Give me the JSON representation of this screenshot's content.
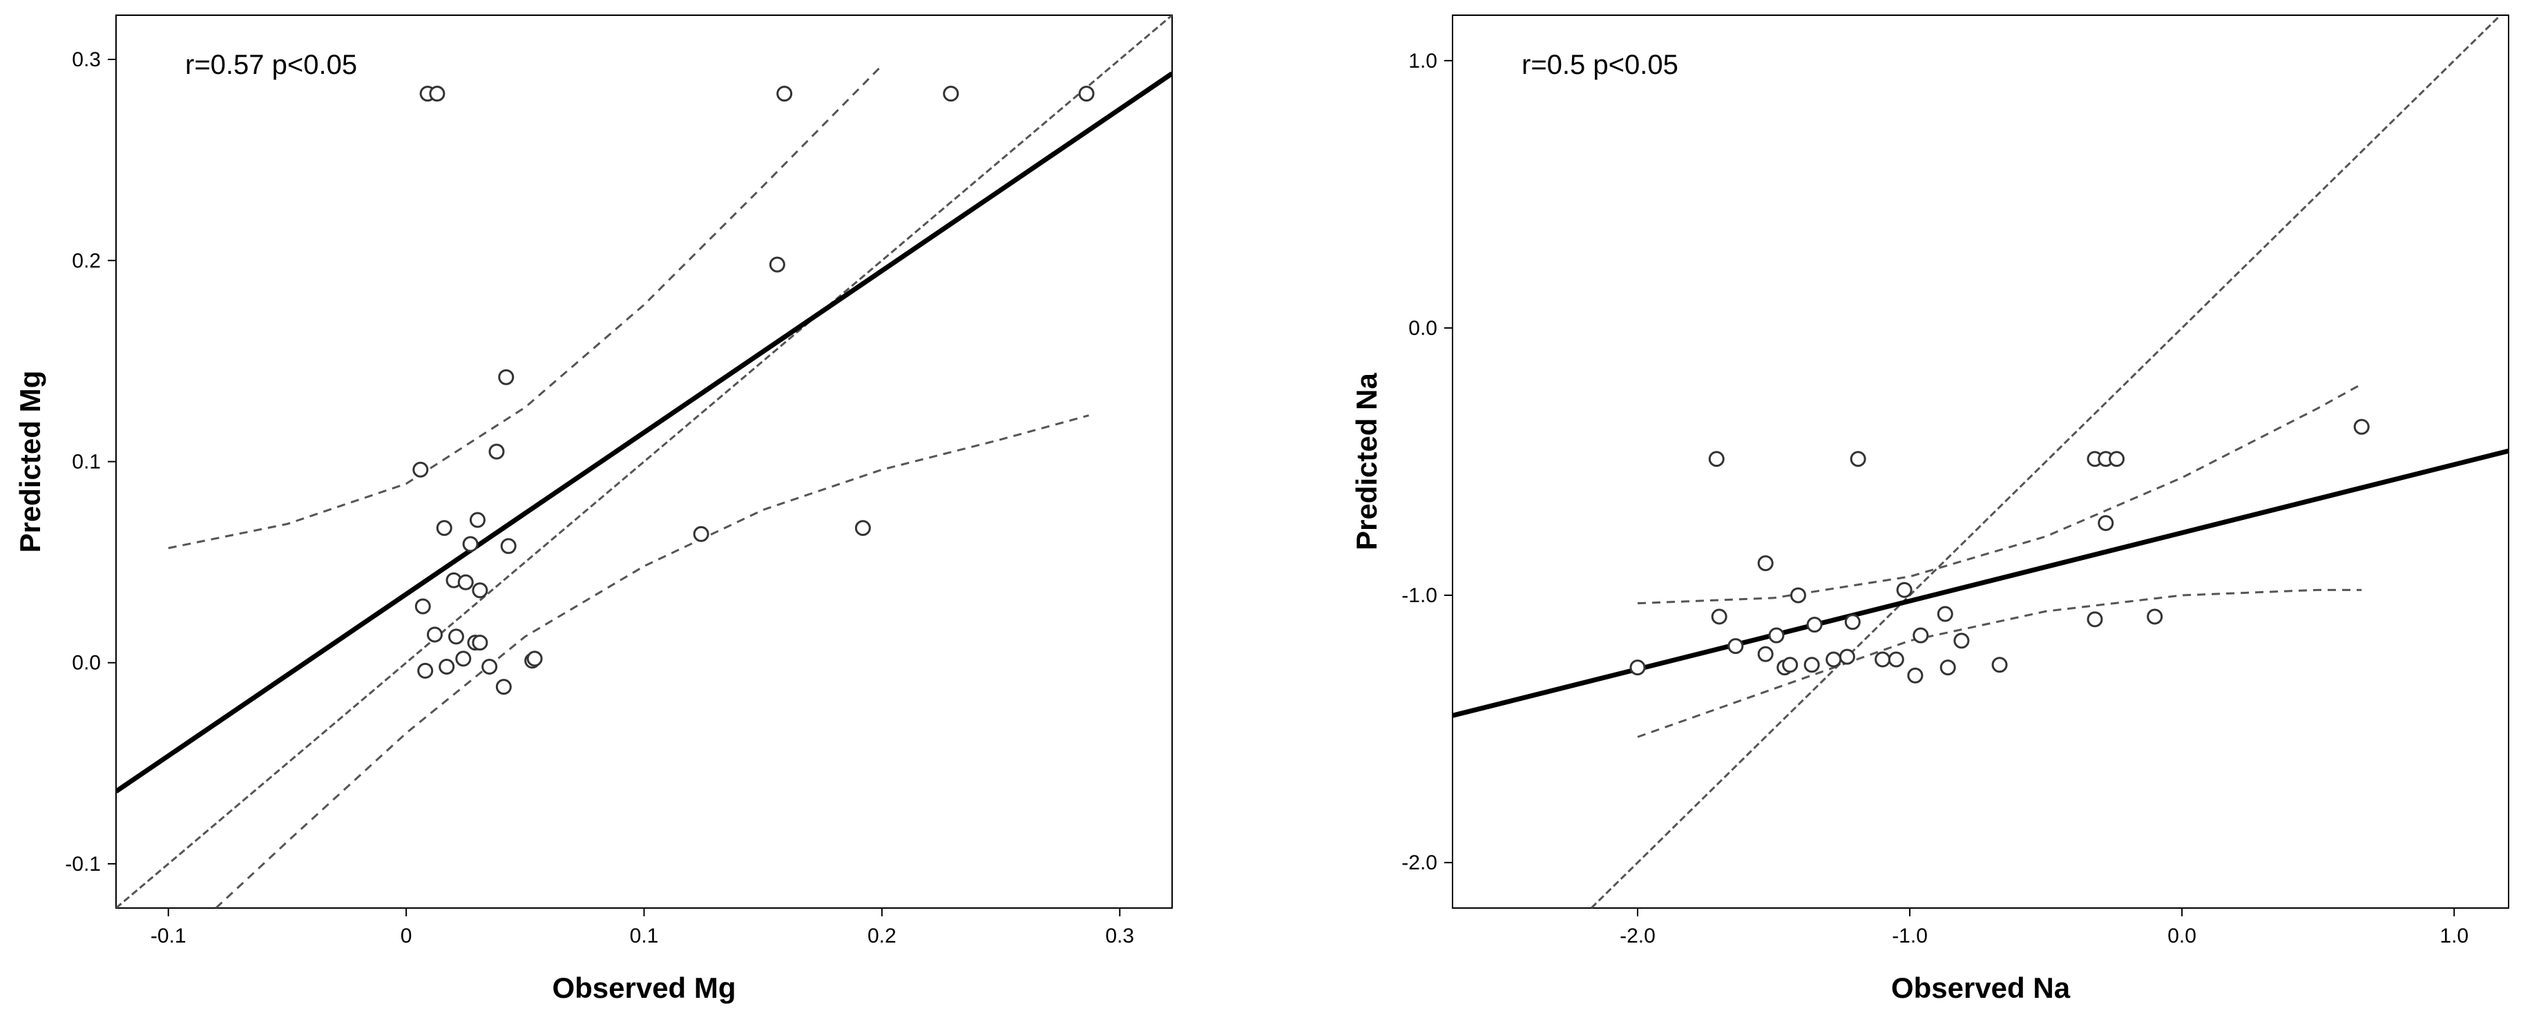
{
  "chart_data": [
    {
      "type": "scatter",
      "title": "",
      "xlabel": "Observed Mg",
      "ylabel": "Predicted Mg",
      "annotation": "r=0.57 p<0.05",
      "xlim": [
        -0.122,
        0.322
      ],
      "ylim": [
        -0.122,
        0.322
      ],
      "x_ticks": [
        -0.1,
        0,
        0.1,
        0.2,
        0.3
      ],
      "x_tick_labels": [
        "-0.1",
        "0",
        "0.1",
        "0.2",
        "0.3"
      ],
      "y_ticks": [
        -0.1,
        0.0,
        0.1,
        0.2,
        0.3
      ],
      "y_tick_labels": [
        "-0.1",
        "0.0",
        "0.1",
        "0.2",
        "0.3"
      ],
      "grid": false,
      "legend": "none",
      "colors": {
        "fit": "#000000",
        "ci": "#555555",
        "identity": "#555555",
        "points": "#333333"
      },
      "points": [
        {
          "x": 0.009,
          "y": 0.283
        },
        {
          "x": 0.013,
          "y": 0.283
        },
        {
          "x": 0.159,
          "y": 0.283
        },
        {
          "x": 0.229,
          "y": 0.283
        },
        {
          "x": 0.286,
          "y": 0.283
        },
        {
          "x": 0.156,
          "y": 0.198
        },
        {
          "x": 0.042,
          "y": 0.142
        },
        {
          "x": 0.038,
          "y": 0.105
        },
        {
          "x": 0.006,
          "y": 0.096
        },
        {
          "x": 0.03,
          "y": 0.071
        },
        {
          "x": 0.016,
          "y": 0.067
        },
        {
          "x": 0.192,
          "y": 0.067
        },
        {
          "x": 0.124,
          "y": 0.064
        },
        {
          "x": 0.043,
          "y": 0.058
        },
        {
          "x": 0.027,
          "y": 0.059
        },
        {
          "x": 0.02,
          "y": 0.041
        },
        {
          "x": 0.025,
          "y": 0.04
        },
        {
          "x": 0.031,
          "y": 0.036
        },
        {
          "x": 0.007,
          "y": 0.028
        },
        {
          "x": 0.012,
          "y": 0.014
        },
        {
          "x": 0.021,
          "y": 0.013
        },
        {
          "x": 0.029,
          "y": 0.01
        },
        {
          "x": 0.031,
          "y": 0.01
        },
        {
          "x": 0.024,
          "y": 0.002
        },
        {
          "x": 0.053,
          "y": 0.001
        },
        {
          "x": 0.054,
          "y": 0.002
        },
        {
          "x": 0.008,
          "y": -0.004
        },
        {
          "x": 0.017,
          "y": -0.002
        },
        {
          "x": 0.035,
          "y": -0.002
        },
        {
          "x": 0.041,
          "y": -0.012
        }
      ],
      "fit_line": {
        "x": [
          -0.122,
          0.322
        ],
        "y": [
          -0.064,
          0.293
        ]
      },
      "identity_line": {
        "x": [
          -0.122,
          0.322
        ],
        "y": [
          -0.122,
          0.322
        ]
      },
      "ci_upper": {
        "x": [
          -0.1,
          -0.05,
          0.0,
          0.05,
          0.1,
          0.15,
          0.2
        ],
        "y": [
          0.057,
          0.069,
          0.089,
          0.127,
          0.178,
          0.237,
          0.297
        ]
      },
      "ci_lower": {
        "x": [
          -0.08,
          -0.05,
          0.0,
          0.05,
          0.1,
          0.15,
          0.2,
          0.25,
          0.287
        ],
        "y": [
          -0.122,
          -0.089,
          -0.035,
          0.013,
          0.048,
          0.076,
          0.096,
          0.111,
          0.123
        ]
      }
    },
    {
      "type": "scatter",
      "title": "",
      "xlabel": "Observed Na",
      "ylabel": "Predicted Na",
      "annotation": "r=0.5 p<0.05",
      "xlim": [
        -2.68,
        1.2
      ],
      "ylim": [
        -2.17,
        1.17
      ],
      "x_ticks": [
        -2.0,
        -1.0,
        0.0,
        1.0
      ],
      "x_tick_labels": [
        "-2.0",
        "-1.0",
        "0.0",
        "1.0"
      ],
      "y_ticks": [
        -2.0,
        -1.0,
        0.0,
        1.0
      ],
      "y_tick_labels": [
        "-2.0",
        "-1.0",
        "0.0",
        "1.0"
      ],
      "grid": false,
      "legend": "none",
      "colors": {
        "fit": "#000000",
        "ci": "#555555",
        "identity": "#555555",
        "points": "#333333"
      },
      "points": [
        {
          "x": -2.0,
          "y": -1.27
        },
        {
          "x": -1.71,
          "y": -0.49
        },
        {
          "x": -1.7,
          "y": -1.08
        },
        {
          "x": -1.64,
          "y": -1.19
        },
        {
          "x": -1.53,
          "y": -0.88
        },
        {
          "x": -1.53,
          "y": -1.22
        },
        {
          "x": -1.49,
          "y": -1.15
        },
        {
          "x": -1.46,
          "y": -1.27
        },
        {
          "x": -1.44,
          "y": -1.26
        },
        {
          "x": -1.41,
          "y": -1.0
        },
        {
          "x": -1.36,
          "y": -1.26
        },
        {
          "x": -1.35,
          "y": -1.11
        },
        {
          "x": -1.28,
          "y": -1.24
        },
        {
          "x": -1.23,
          "y": -1.23
        },
        {
          "x": -1.21,
          "y": -1.1
        },
        {
          "x": -1.19,
          "y": -0.49
        },
        {
          "x": -1.1,
          "y": -1.24
        },
        {
          "x": -1.05,
          "y": -1.24
        },
        {
          "x": -1.02,
          "y": -0.98
        },
        {
          "x": -0.98,
          "y": -1.3
        },
        {
          "x": -0.96,
          "y": -1.15
        },
        {
          "x": -0.87,
          "y": -1.07
        },
        {
          "x": -0.86,
          "y": -1.27
        },
        {
          "x": -0.81,
          "y": -1.17
        },
        {
          "x": -0.67,
          "y": -1.26
        },
        {
          "x": -0.32,
          "y": -0.49
        },
        {
          "x": -0.28,
          "y": -0.49
        },
        {
          "x": -0.24,
          "y": -0.49
        },
        {
          "x": -0.28,
          "y": -0.73
        },
        {
          "x": -0.32,
          "y": -1.09
        },
        {
          "x": -0.1,
          "y": -1.08
        },
        {
          "x": 0.66,
          "y": -0.37
        }
      ],
      "fit_line": {
        "x": [
          -2.68,
          1.2
        ],
        "y": [
          -1.45,
          -0.46
        ]
      },
      "identity_line": {
        "x": [
          -2.17,
          1.17
        ],
        "y": [
          -2.17,
          1.17
        ]
      },
      "ci_upper": {
        "x": [
          -2.0,
          -1.5,
          -1.0,
          -0.5,
          0.0,
          0.5,
          0.66
        ],
        "y": [
          -1.03,
          -1.01,
          -0.93,
          -0.78,
          -0.56,
          -0.3,
          -0.21
        ]
      },
      "ci_lower": {
        "x": [
          -2.0,
          -1.5,
          -1.0,
          -0.5,
          0.0,
          0.5,
          0.66
        ],
        "y": [
          -1.53,
          -1.35,
          -1.17,
          -1.06,
          -1.0,
          -0.98,
          -0.98
        ]
      }
    }
  ]
}
